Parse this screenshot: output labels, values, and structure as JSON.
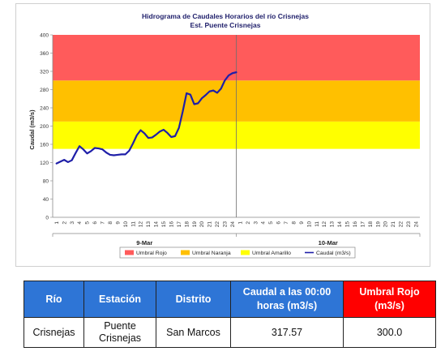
{
  "chart_data": {
    "type": "line",
    "title": "Hidrograma de Caudales Horarios del río Crisnejas",
    "subtitle": "Est. Puente Crisnejas",
    "ylabel": "Caudal  (m3/s)",
    "ylim": [
      0,
      400
    ],
    "yticks": [
      0,
      40,
      80,
      120,
      160,
      200,
      240,
      280,
      320,
      360,
      400
    ],
    "hours": [
      "1",
      "2",
      "3",
      "4",
      "5",
      "6",
      "7",
      "8",
      "9",
      "10",
      "11",
      "12",
      "13",
      "14",
      "15",
      "16",
      "17",
      "18",
      "19",
      "20",
      "21",
      "22",
      "23",
      "24"
    ],
    "days": [
      "9-Mar",
      "10-Mar"
    ],
    "thresholds": [
      {
        "name": "Umbral Amarillo",
        "from": 150,
        "to": 210,
        "color": "#ffff00"
      },
      {
        "name": "Umbral Naranja",
        "from": 210,
        "to": 300,
        "color": "#ffc000"
      },
      {
        "name": "Umbral Rojo",
        "from": 300,
        "to": 400,
        "color": "#ff5b5b"
      }
    ],
    "series": [
      {
        "name": "Caudal (m3/s)",
        "color": "#1f1fa8",
        "x": [
          0.0,
          0.5,
          1.0,
          1.5,
          2.0,
          2.5,
          3.0,
          3.5,
          4.0,
          4.5,
          5.0,
          5.5,
          6.0,
          6.5,
          7.0,
          7.5,
          8.0,
          8.5,
          9.0,
          9.5,
          10.0,
          10.5,
          11.0,
          11.5,
          12.0,
          12.5,
          13.0,
          13.5,
          14.0,
          14.5,
          15.0,
          15.5,
          16.0,
          16.5,
          17.0,
          17.5,
          18.0,
          18.5,
          19.0,
          19.5,
          20.0,
          20.5,
          21.0,
          21.5,
          22.0,
          22.5,
          23.0,
          23.5
        ],
        "values": [
          118,
          122,
          126,
          121,
          125,
          141,
          156,
          149,
          140,
          145,
          152,
          151,
          149,
          142,
          137,
          136,
          137,
          138,
          138,
          146,
          162,
          180,
          191,
          184,
          174,
          175,
          181,
          188,
          192,
          185,
          176,
          178,
          196,
          232,
          272,
          269,
          248,
          250,
          261,
          268,
          276,
          278,
          273,
          282,
          300,
          311,
          316,
          318
        ]
      }
    ],
    "legend": [
      "Umbral Rojo",
      "Umbral Naranja",
      "Umbral Amarillo",
      "Caudal (m3/s)"
    ]
  },
  "table": {
    "headers": [
      "Río",
      "Estación",
      "Distrito",
      "Caudal a las 00:00 horas (m3/s)",
      "Umbral Rojo (m3/s)"
    ],
    "row": [
      "Crisnejas",
      "Puente Crisnejas",
      "San Marcos",
      "317.57",
      "300.0"
    ]
  }
}
